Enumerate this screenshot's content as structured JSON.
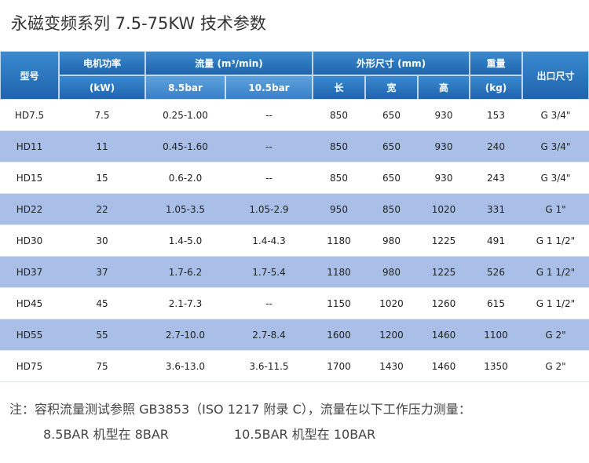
{
  "title": "永磁变频系列 7.5-75KW 技术参数",
  "table": {
    "header": {
      "model": "型号",
      "power": "电机功率",
      "power_unit": "(kW)",
      "flow": "流量 (m³/min)",
      "flow_85": "8.5bar",
      "flow_105": "10.5bar",
      "dims": "外形尺寸 (mm)",
      "length": "长",
      "width": "宽",
      "height": "高",
      "weight": "重量",
      "weight_unit": "(kg)",
      "outlet": "出口尺寸"
    },
    "rows": [
      [
        "HD7.5",
        "7.5",
        "0.25-1.00",
        "--",
        "850",
        "650",
        "930",
        "153",
        "G 3/4\""
      ],
      [
        "HD11",
        "11",
        "0.45-1.60",
        "--",
        "850",
        "650",
        "930",
        "240",
        "G 3/4\""
      ],
      [
        "HD15",
        "15",
        "0.6-2.0",
        "--",
        "850",
        "650",
        "930",
        "243",
        "G 3/4\""
      ],
      [
        "HD22",
        "22",
        "1.05-3.5",
        "1.05-2.9",
        "950",
        "850",
        "1020",
        "331",
        "G 1\""
      ],
      [
        "HD30",
        "30",
        "1.4-5.0",
        "1.4-4.3",
        "1180",
        "980",
        "1225",
        "491",
        "G 1 1/2\""
      ],
      [
        "HD37",
        "37",
        "1.7-6.2",
        "1.7-5.4",
        "1180",
        "980",
        "1225",
        "526",
        "G 1 1/2\""
      ],
      [
        "HD45",
        "45",
        "2.1-7.3",
        "--",
        "1150",
        "1020",
        "1260",
        "615",
        "G 1 1/2\""
      ],
      [
        "HD55",
        "55",
        "2.7-10.0",
        "2.7-8.4",
        "1600",
        "1200",
        "1460",
        "1100",
        "G 2\""
      ],
      [
        "HD75",
        "75",
        "3.6-13.0",
        "3.6-11.5",
        "1700",
        "1430",
        "1460",
        "1350",
        "G 2\""
      ]
    ]
  },
  "notes": {
    "text": "注：容积流量测试参照 GB3853（ISO 1217 附录 C），流量在以下工作压力测量：",
    "line1": "8.5BAR 机型在 8BAR",
    "line2": "10.5BAR 机型在 10BAR"
  }
}
